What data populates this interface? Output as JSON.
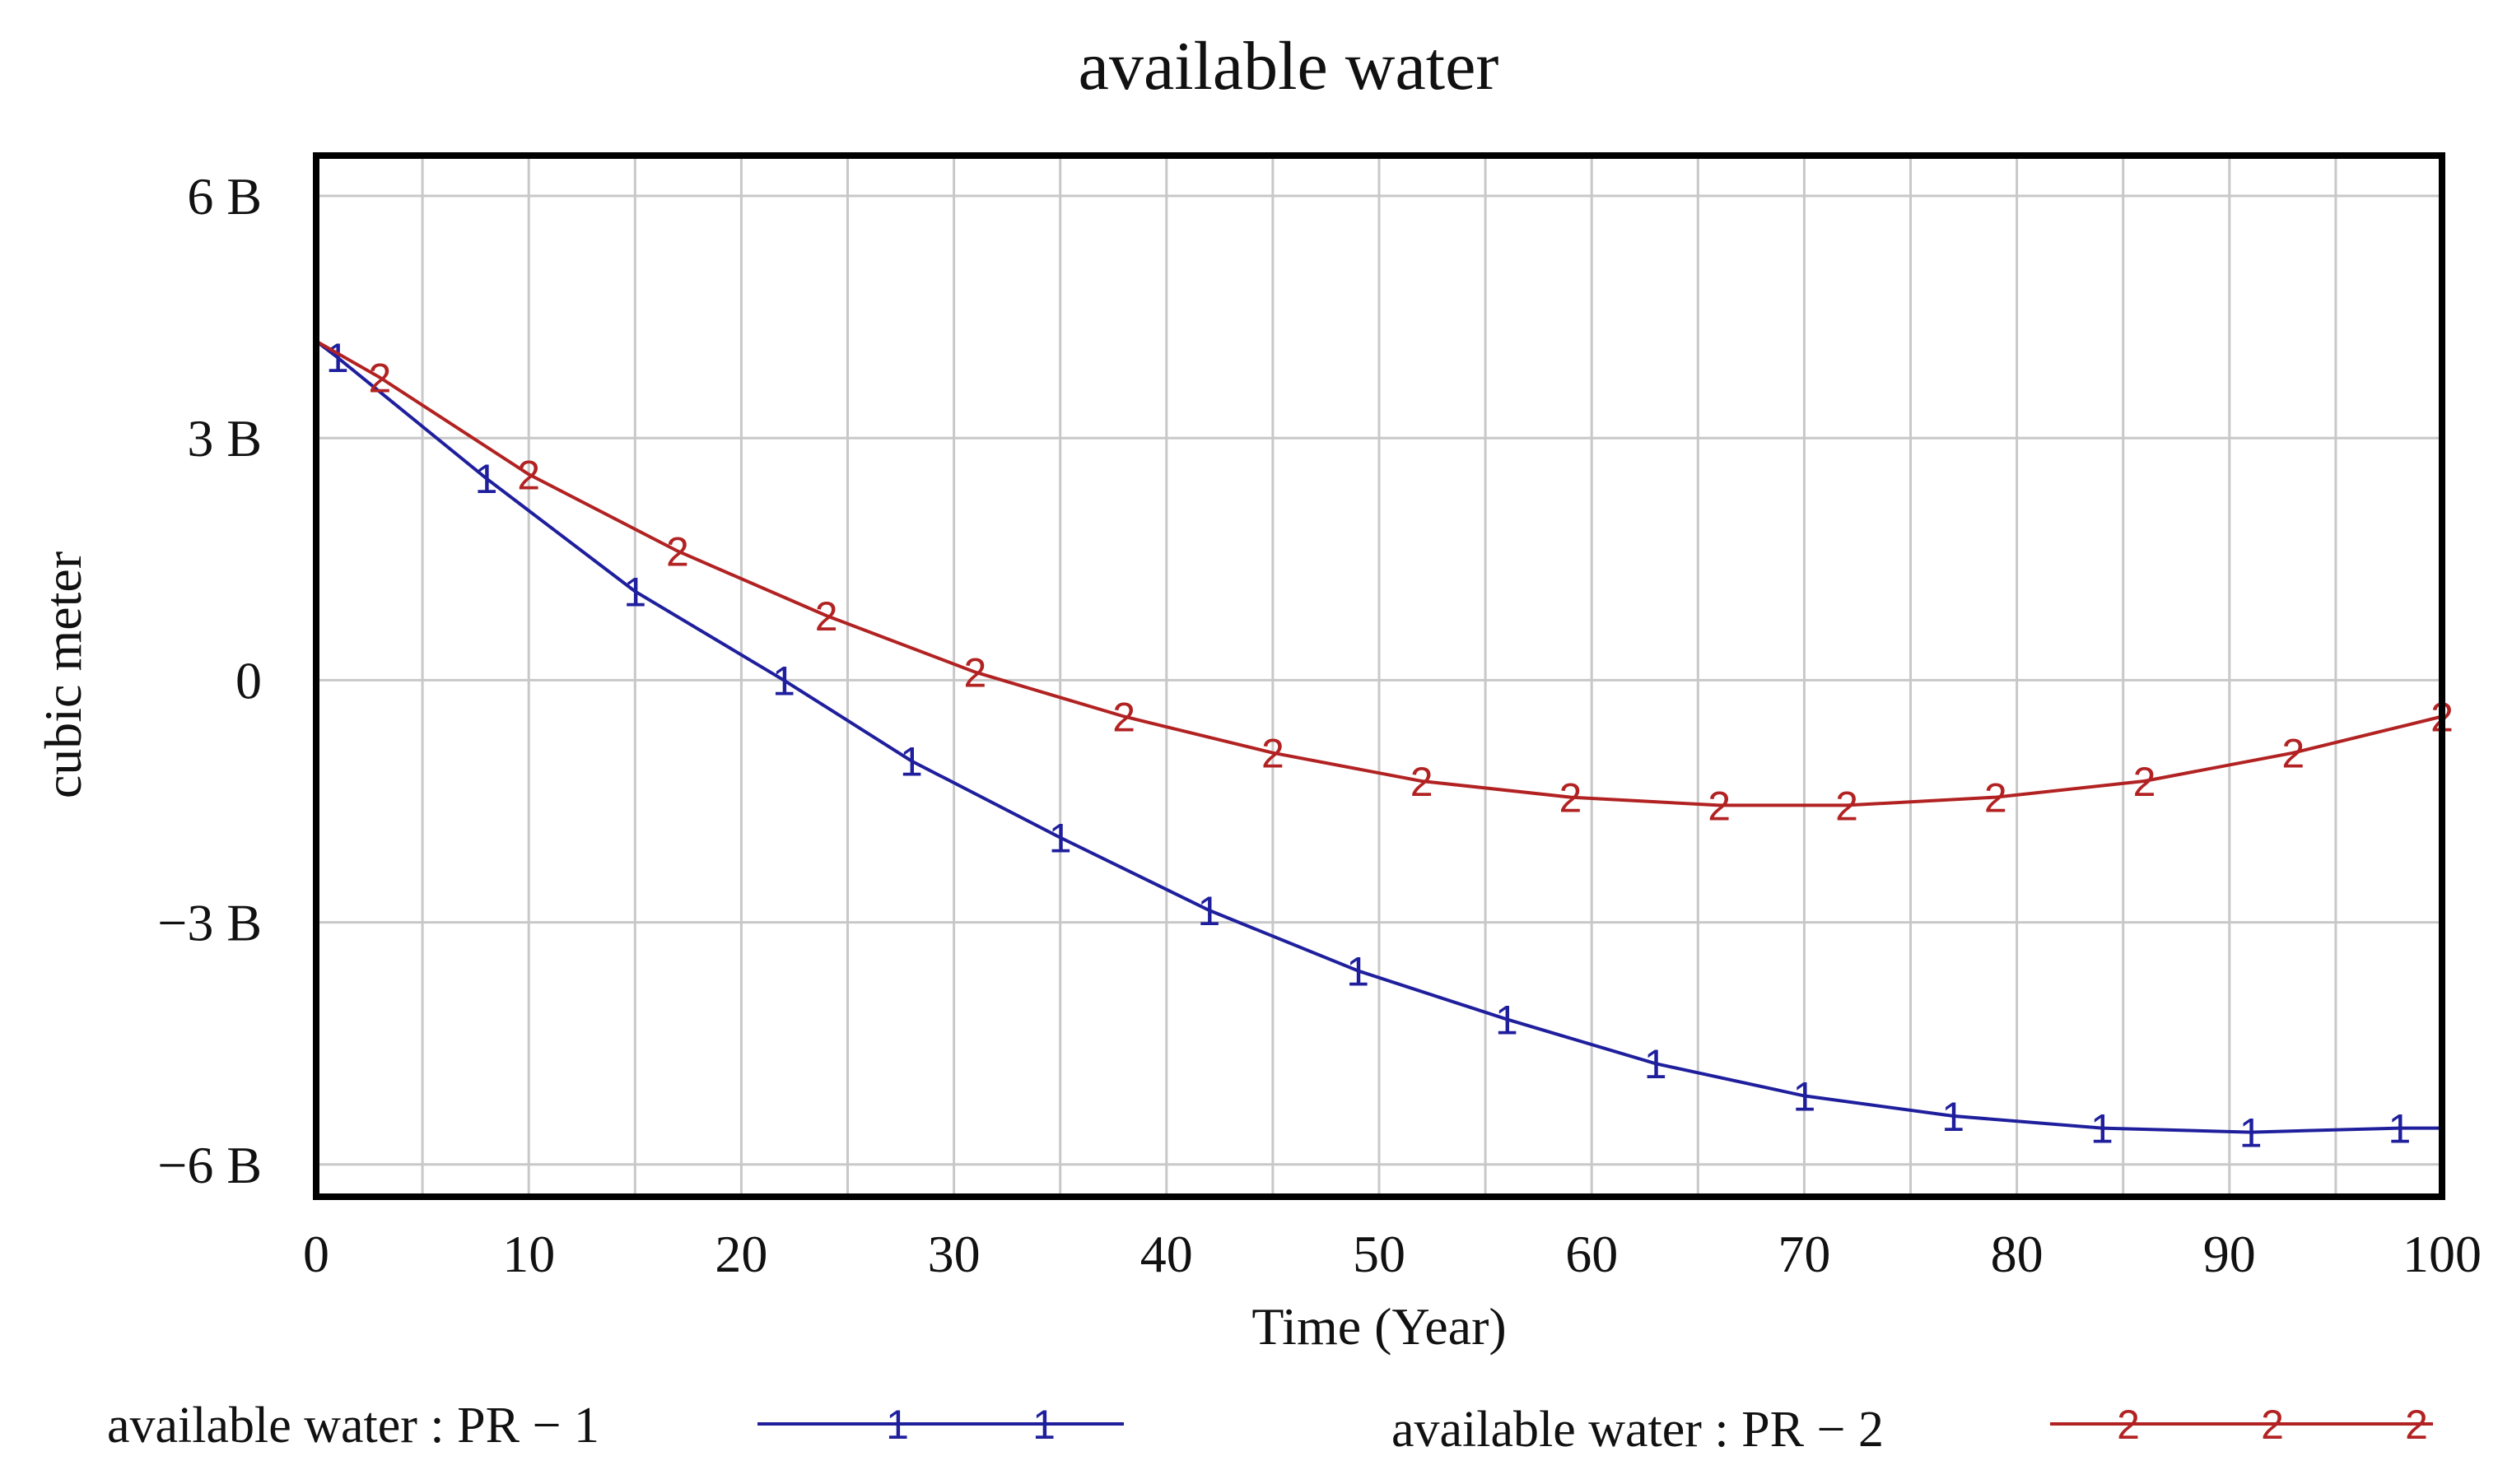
{
  "chart_data": {
    "type": "line",
    "title": "available water",
    "xlabel": "Time (Year)",
    "ylabel": "cubic meter",
    "xlim": [
      0,
      100
    ],
    "ylim": [
      -6.4,
      6.5
    ],
    "x_ticks": [
      0,
      10,
      20,
      30,
      40,
      50,
      60,
      70,
      80,
      90,
      100
    ],
    "x_tick_labels": [
      "0",
      "10",
      "20",
      "30",
      "40",
      "50",
      "60",
      "70",
      "80",
      "90",
      "100"
    ],
    "y_ticks": [
      -6,
      -3,
      0,
      3,
      6
    ],
    "y_tick_labels": [
      "−6 B",
      "−3 B",
      "0",
      "3 B",
      "6 B"
    ],
    "value_unit": "billion cubic meters",
    "grid": true,
    "legend_position": "bottom",
    "series": [
      {
        "name": "available water : PR − 1",
        "color": "#1f1f9e",
        "marker_label": "1",
        "x": [
          0,
          1,
          8,
          15,
          22,
          28,
          35,
          42,
          49,
          56,
          63,
          70,
          77,
          84,
          91,
          98,
          100
        ],
        "y": [
          4.2,
          4.0,
          2.5,
          1.1,
          0.0,
          -1.0,
          -1.95,
          -2.85,
          -3.6,
          -4.2,
          -4.75,
          -5.15,
          -5.4,
          -5.55,
          -5.6,
          -5.55,
          -5.55
        ],
        "marker_x": [
          1,
          8,
          15,
          22,
          28,
          35,
          42,
          49,
          56,
          63,
          70,
          77,
          84,
          91,
          98
        ]
      },
      {
        "name": "available water : PR − 2",
        "color": "#b22222",
        "marker_label": "2",
        "x": [
          0,
          3,
          10,
          17,
          24,
          31,
          38,
          45,
          52,
          59,
          66,
          72,
          79,
          86,
          93,
          100
        ],
        "y": [
          4.2,
          3.75,
          2.55,
          1.6,
          0.8,
          0.1,
          -0.45,
          -0.9,
          -1.25,
          -1.45,
          -1.55,
          -1.55,
          -1.45,
          -1.25,
          -0.9,
          -0.45
        ],
        "marker_x": [
          3,
          10,
          17,
          24,
          31,
          38,
          45,
          52,
          59,
          66,
          72,
          79,
          86,
          93,
          100
        ]
      }
    ]
  }
}
